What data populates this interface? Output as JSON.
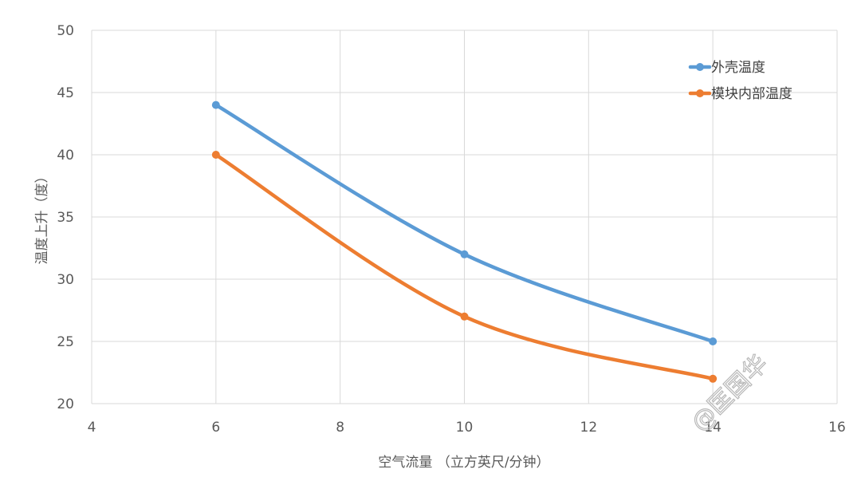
{
  "chart_data": {
    "type": "line",
    "smooth": true,
    "xlabel": "空气流量 （立方英尺/分钟）",
    "ylabel": "温度上升（度）",
    "xlim": [
      4,
      16
    ],
    "ylim": [
      20,
      50
    ],
    "x_ticks": [
      "4",
      "6",
      "8",
      "10",
      "12",
      "14",
      "16"
    ],
    "y_ticks": [
      "20",
      "25",
      "30",
      "35",
      "40",
      "45",
      "50"
    ],
    "grid": true,
    "legend_position": "top-right",
    "series": [
      {
        "name": "外壳温度",
        "color": "#5b9bd5",
        "x": [
          6,
          10,
          14
        ],
        "y": [
          44,
          32,
          25
        ]
      },
      {
        "name": "模块内部温度",
        "color": "#ed7d31",
        "x": [
          6,
          10,
          14
        ],
        "y": [
          40,
          27,
          22
        ]
      }
    ]
  },
  "watermark": "@匡国华"
}
